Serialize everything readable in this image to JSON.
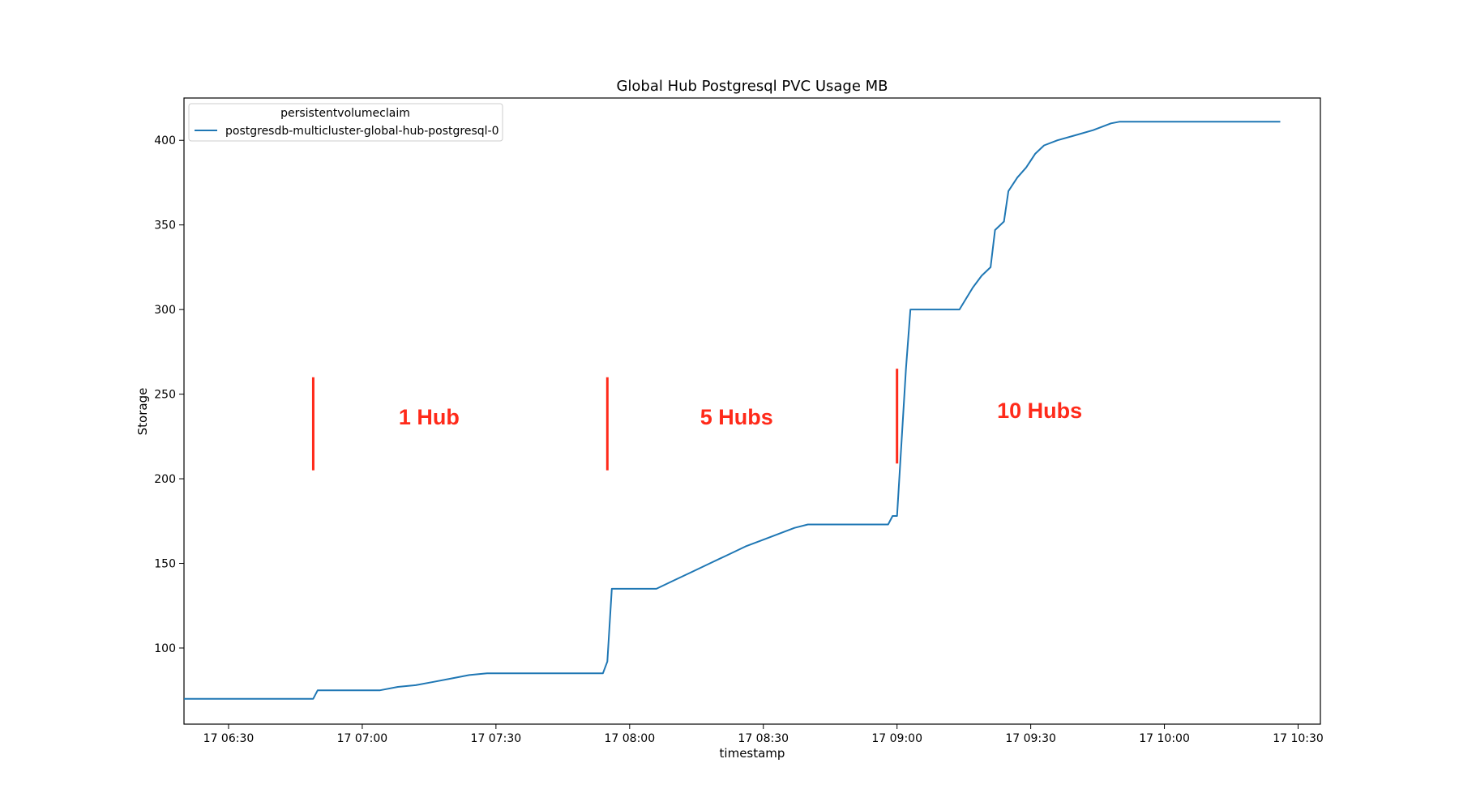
{
  "chart_data": {
    "type": "line",
    "title": "Global Hub Postgresql PVC Usage MB",
    "xlabel": "timestamp",
    "ylabel": "Storage",
    "legend": {
      "title": "persistentvolumeclaim",
      "placement": "top-left"
    },
    "x_axis": {
      "kind": "time",
      "range": [
        "17 06:20",
        "17 10:35"
      ],
      "ticks": [
        "17 06:30",
        "17 07:00",
        "17 07:30",
        "17 08:00",
        "17 08:30",
        "17 09:00",
        "17 09:30",
        "17 10:00",
        "17 10:30"
      ]
    },
    "y_axis": {
      "range": [
        55,
        425
      ],
      "ticks": [
        100,
        150,
        200,
        250,
        300,
        350,
        400
      ]
    },
    "grid": false,
    "series": [
      {
        "name": "postgresdb-multicluster-global-hub-postgresql-0",
        "color": "#1f77b4",
        "points": [
          [
            "17 06:20",
            70
          ],
          [
            "17 06:49",
            70
          ],
          [
            "17 06:50",
            75
          ],
          [
            "17 07:04",
            75
          ],
          [
            "17 07:08",
            77
          ],
          [
            "17 07:12",
            78
          ],
          [
            "17 07:16",
            80
          ],
          [
            "17 07:20",
            82
          ],
          [
            "17 07:24",
            84
          ],
          [
            "17 07:28",
            85
          ],
          [
            "17 07:54",
            85
          ],
          [
            "17 07:55",
            92
          ],
          [
            "17 07:56",
            135
          ],
          [
            "17 08:06",
            135
          ],
          [
            "17 08:10",
            140
          ],
          [
            "17 08:14",
            145
          ],
          [
            "17 08:18",
            150
          ],
          [
            "17 08:22",
            155
          ],
          [
            "17 08:26",
            160
          ],
          [
            "17 08:30",
            164
          ],
          [
            "17 08:34",
            168
          ],
          [
            "17 08:37",
            171
          ],
          [
            "17 08:40",
            173
          ],
          [
            "17 08:58",
            173
          ],
          [
            "17 08:59",
            178
          ],
          [
            "17 09:00",
            178
          ],
          [
            "17 09:02",
            265
          ],
          [
            "17 09:03",
            300
          ],
          [
            "17 09:14",
            300
          ],
          [
            "17 09:17",
            313
          ],
          [
            "17 09:19",
            320
          ],
          [
            "17 09:21",
            325
          ],
          [
            "17 09:22",
            347
          ],
          [
            "17 09:24",
            352
          ],
          [
            "17 09:25",
            370
          ],
          [
            "17 09:27",
            378
          ],
          [
            "17 09:29",
            384
          ],
          [
            "17 09:31",
            392
          ],
          [
            "17 09:33",
            397
          ],
          [
            "17 09:36",
            400
          ],
          [
            "17 09:40",
            403
          ],
          [
            "17 09:44",
            406
          ],
          [
            "17 09:48",
            410
          ],
          [
            "17 09:50",
            411
          ],
          [
            "17 10:26",
            411
          ]
        ]
      }
    ],
    "annotations": {
      "color": "#ff2a1a",
      "markers": [
        {
          "time": "17 06:49",
          "y_range": [
            205,
            260
          ]
        },
        {
          "time": "17 07:55",
          "y_range": [
            205,
            260
          ]
        },
        {
          "time": "17 09:00",
          "y_range": [
            209,
            265
          ]
        }
      ],
      "labels": [
        {
          "text": "1 Hub",
          "time": "17 07:15",
          "y": 232
        },
        {
          "text": "5 Hubs",
          "time": "17 08:24",
          "y": 232
        },
        {
          "text": "10 Hubs",
          "time": "17 09:32",
          "y": 236
        }
      ]
    }
  }
}
